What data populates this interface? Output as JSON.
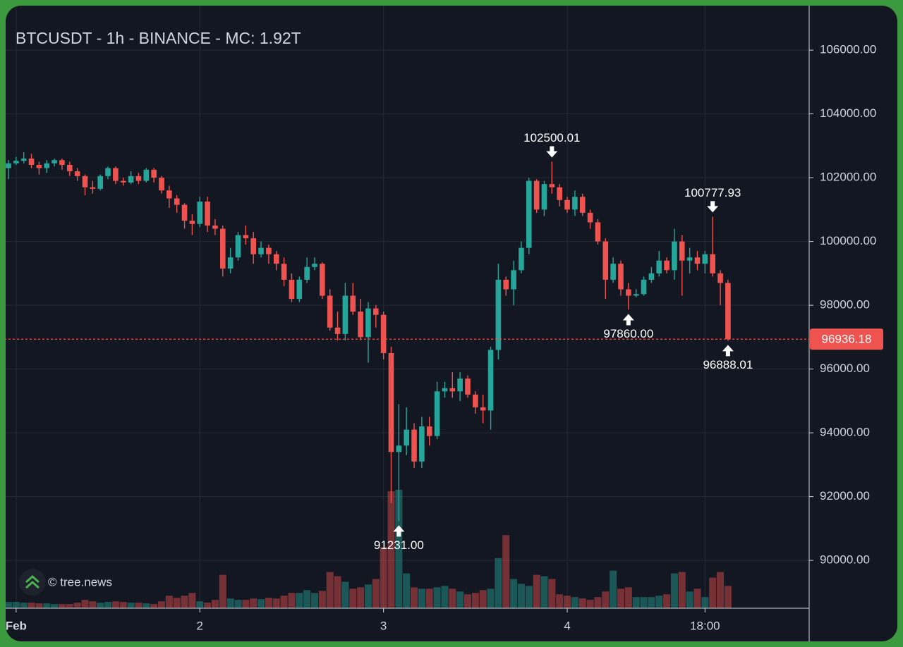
{
  "chart_data": {
    "type": "candlestick",
    "title": "BTCUSDT - 1h - BINANCE - MC: 1.92T",
    "watermark": "© tree.news",
    "categories": [
      null,
      "Feb",
      null,
      null,
      null,
      null,
      null,
      null,
      null,
      null,
      null,
      null,
      null,
      null,
      null,
      null,
      null,
      null,
      null,
      null,
      null,
      null,
      null,
      null,
      null,
      "2",
      null,
      null,
      null,
      null,
      null,
      null,
      null,
      null,
      null,
      null,
      null,
      null,
      null,
      null,
      null,
      null,
      null,
      null,
      null,
      null,
      null,
      null,
      null,
      "3",
      null,
      null,
      null,
      null,
      null,
      null,
      null,
      null,
      null,
      null,
      null,
      null,
      null,
      null,
      null,
      null,
      null,
      null,
      null,
      null,
      null,
      null,
      null,
      "4",
      null,
      null,
      null,
      null,
      null,
      null,
      null,
      null,
      null,
      null,
      null,
      null,
      null,
      null,
      null,
      null,
      null,
      "18:00",
      null,
      null,
      null
    ],
    "open": [
      102300,
      102450,
      102530,
      102600,
      102400,
      102300,
      102450,
      102550,
      102400,
      102200,
      102050,
      101700,
      101650,
      102050,
      102300,
      101900,
      101850,
      102050,
      101900,
      102250,
      102000,
      101600,
      101350,
      101150,
      100650,
      100550,
      101250,
      100500,
      100400,
      99150,
      99500,
      100200,
      100100,
      99600,
      99800,
      99600,
      99300,
      98800,
      98200,
      98800,
      99200,
      99300,
      98300,
      97300,
      97100,
      98300,
      97800,
      97000,
      97900,
      97700,
      96500,
      93400,
      93600,
      94100,
      93100,
      94200,
      93900,
      95300,
      95400,
      95300,
      95700,
      95200,
      94800,
      94700,
      96600,
      98800,
      98500,
      99100,
      99800,
      101900,
      101000,
      101800,
      101700,
      101300,
      101000,
      101400,
      100900,
      100600,
      100000,
      98800,
      99300,
      98500,
      98300,
      98350,
      98800,
      99000,
      99400,
      99100,
      100000,
      99400,
      99500,
      99300,
      99600,
      99000,
      98700
    ],
    "high": [
      102550,
      102650,
      102800,
      102750,
      102500,
      102550,
      102600,
      102600,
      102500,
      102300,
      102100,
      101900,
      102100,
      102350,
      102350,
      102000,
      102200,
      102150,
      102300,
      102300,
      102050,
      101750,
      101450,
      101200,
      100850,
      101400,
      101400,
      100700,
      100500,
      99800,
      100300,
      100500,
      100300,
      100000,
      99900,
      99700,
      99500,
      99000,
      98900,
      99500,
      99500,
      99350,
      98500,
      97800,
      98700,
      98700,
      98200,
      98100,
      98000,
      97800,
      96700,
      94900,
      94800,
      94300,
      94500,
      94500,
      95600,
      95600,
      95900,
      95900,
      95800,
      95300,
      95200,
      96700,
      99300,
      98900,
      99400,
      100000,
      102000,
      101950,
      101900,
      102500.01,
      101800,
      101400,
      101600,
      101500,
      101000,
      100700,
      100100,
      99500,
      99400,
      98700,
      98500,
      98900,
      99200,
      99700,
      99500,
      100400,
      100200,
      99800,
      99700,
      99700,
      100777.93,
      99100,
      98800
    ],
    "low": [
      101950,
      102400,
      102450,
      102300,
      102100,
      102150,
      102350,
      102250,
      102050,
      101900,
      101450,
      101500,
      101600,
      101950,
      101800,
      101750,
      101800,
      101800,
      101850,
      101850,
      101500,
      101050,
      100900,
      100400,
      100200,
      100450,
      100300,
      100200,
      98900,
      99000,
      99400,
      99900,
      99300,
      99500,
      99300,
      99100,
      98600,
      98100,
      98100,
      98700,
      99100,
      98200,
      97200,
      96900,
      96900,
      97700,
      96900,
      96200,
      97300,
      96300,
      91800,
      91231.0,
      93300,
      92900,
      92900,
      93600,
      93800,
      95100,
      95100,
      95000,
      95100,
      94600,
      94300,
      94100,
      96300,
      98300,
      98000,
      99000,
      99600,
      100900,
      100800,
      101500,
      101100,
      100900,
      100800,
      100800,
      100400,
      99900,
      98200,
      98700,
      98300,
      97860.0,
      98250,
      98300,
      98700,
      98900,
      99000,
      98800,
      98300,
      99000,
      99100,
      99000,
      98900,
      98000,
      96888.01
    ],
    "close": [
      102450,
      102530,
      102600,
      102400,
      102300,
      102450,
      102550,
      102400,
      102200,
      102050,
      101700,
      101650,
      102050,
      102300,
      101900,
      101850,
      102050,
      101900,
      102250,
      102000,
      101600,
      101350,
      101150,
      100650,
      100550,
      101250,
      100500,
      100400,
      99150,
      99500,
      100200,
      100100,
      99600,
      99800,
      99600,
      99300,
      98800,
      98200,
      98800,
      99200,
      99300,
      98300,
      97300,
      97100,
      98300,
      97800,
      97000,
      97900,
      97700,
      96500,
      93400,
      93600,
      94100,
      93100,
      94200,
      93900,
      95300,
      95400,
      95300,
      95700,
      95200,
      94800,
      94700,
      96600,
      98800,
      98500,
      99100,
      99800,
      101900,
      101000,
      101800,
      101700,
      101300,
      101000,
      101400,
      100900,
      100600,
      100000,
      98800,
      99300,
      98500,
      98300,
      98350,
      98800,
      99000,
      99400,
      99100,
      100000,
      99400,
      99500,
      99300,
      99600,
      99000,
      98700,
      96936.18
    ],
    "volume": [
      9,
      9,
      8,
      8,
      7,
      7,
      6,
      6,
      6,
      8,
      12,
      10,
      8,
      9,
      10,
      9,
      8,
      8,
      7,
      6,
      10,
      18,
      15,
      18,
      22,
      10,
      8,
      12,
      48,
      14,
      12,
      12,
      14,
      13,
      15,
      14,
      18,
      22,
      22,
      26,
      22,
      25,
      52,
      46,
      38,
      28,
      30,
      34,
      42,
      88,
      168,
      170,
      50,
      30,
      28,
      28,
      30,
      32,
      28,
      24,
      20,
      22,
      26,
      28,
      72,
      105,
      42,
      35,
      32,
      48,
      46,
      42,
      20,
      18,
      16,
      14,
      12,
      16,
      24,
      54,
      28,
      30,
      16,
      16,
      16,
      18,
      20,
      50,
      52,
      24,
      28,
      16,
      44,
      52,
      32
    ],
    "up_color": "#26a69a",
    "down_color": "#ef5350",
    "ylim": [
      88500,
      107350
    ],
    "yticks": [
      {
        "value": 90000,
        "label": "90000.00"
      },
      {
        "value": 92000,
        "label": "92000.00"
      },
      {
        "value": 94000,
        "label": "94000.00"
      },
      {
        "value": 96000,
        "label": "96000.00"
      },
      {
        "value": 98000,
        "label": "98000.00"
      },
      {
        "value": 100000,
        "label": "100000.00"
      },
      {
        "value": 102000,
        "label": "102000.00"
      },
      {
        "value": 104000,
        "label": "104000.00"
      },
      {
        "value": 106000,
        "label": "106000.00"
      }
    ],
    "grid": true,
    "last_price": 96936.18,
    "high_labels": [
      102500.01,
      100777.93
    ],
    "low_labels": [
      {
        "value": 91231.0,
        "label": "91231.00"
      },
      {
        "value": 97860.0,
        "label": "97860.00"
      },
      96888.01
    ]
  }
}
